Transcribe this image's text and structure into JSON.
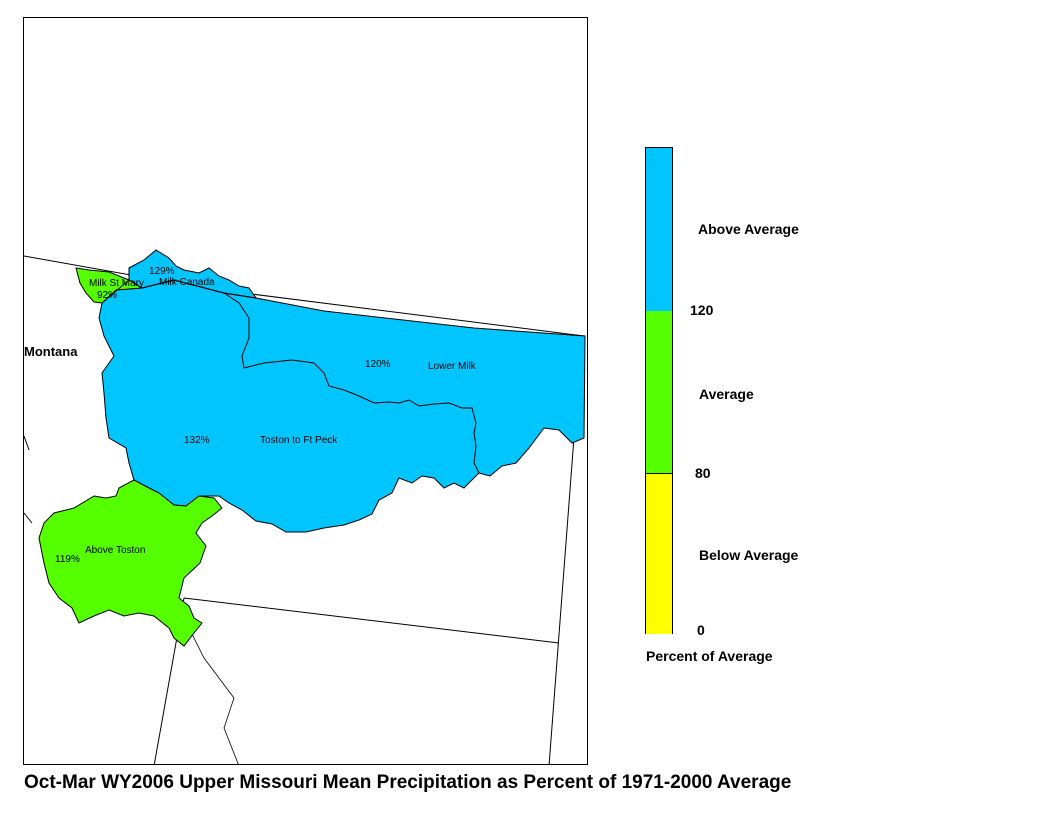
{
  "title": "Oct-Mar WY2006 Upper Missouri Mean Precipitation as Percent of 1971-2000 Average",
  "state_label": "Montana",
  "basins": [
    {
      "name": "Milk St Mary",
      "percent": "92%",
      "color": "#55ff00"
    },
    {
      "name": "Milk Canada",
      "percent": "129%",
      "color": "#00c5ff"
    },
    {
      "name": "Lower Milk",
      "percent": "120%",
      "color": "#00c5ff"
    },
    {
      "name": "Toston to Ft Peck",
      "percent": "132%",
      "color": "#00c5ff"
    },
    {
      "name": "Above Toston",
      "percent": "119%",
      "color": "#55ff00"
    }
  ],
  "legend": {
    "title": "Percent of Average",
    "classes": [
      {
        "label": "Above Average",
        "color": "#00c5ff"
      },
      {
        "label": "Average",
        "color": "#55ff00"
      },
      {
        "label": "Below Average",
        "color": "#ffff00"
      }
    ],
    "breaks": [
      "120",
      "80",
      "0"
    ]
  }
}
